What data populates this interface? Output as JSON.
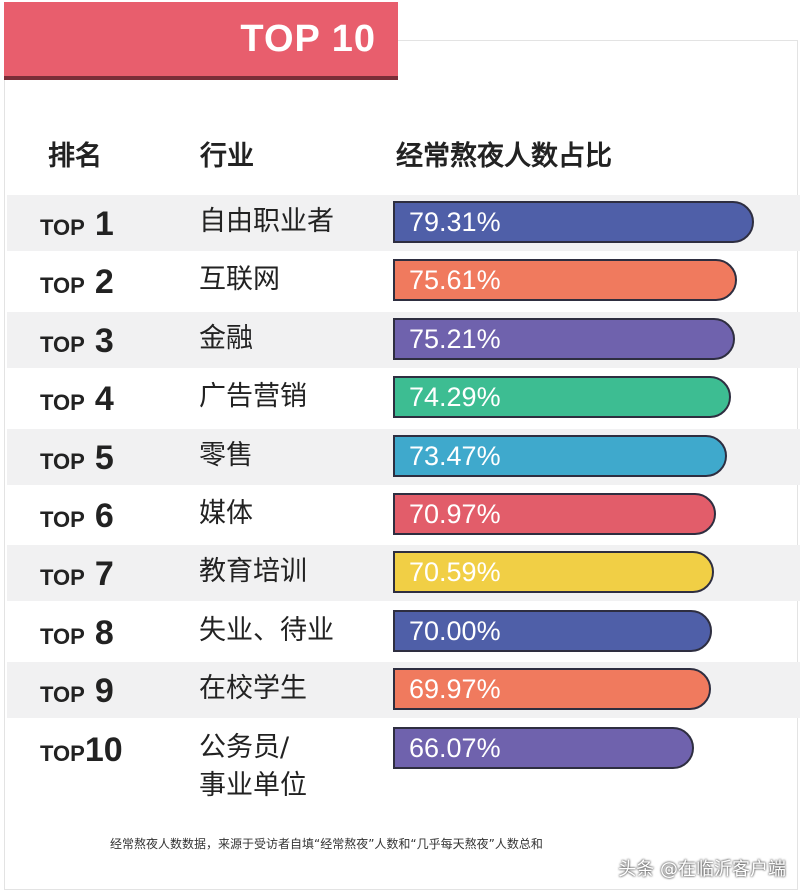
{
  "title": "TOP 10",
  "headers": {
    "rank": "排名",
    "industry": "行业",
    "share": "经常熬夜人数占比"
  },
  "chart_data": {
    "type": "bar",
    "title": "TOP 10",
    "categories": [
      "自由职业者",
      "互联网",
      "金融",
      "广告营销",
      "零售",
      "媒体",
      "教育培训",
      "失业、待业",
      "在校学生",
      "公务员/事业单位"
    ],
    "ranks": [
      {
        "prefix": "TOP",
        "number": "1"
      },
      {
        "prefix": "TOP",
        "number": "2"
      },
      {
        "prefix": "TOP",
        "number": "3"
      },
      {
        "prefix": "TOP",
        "number": "4"
      },
      {
        "prefix": "TOP",
        "number": "5"
      },
      {
        "prefix": "TOP",
        "number": "6"
      },
      {
        "prefix": "TOP",
        "number": "7"
      },
      {
        "prefix": "TOP",
        "number": "8"
      },
      {
        "prefix": "TOP",
        "number": "9"
      },
      {
        "prefix": "TOP",
        "number": "10"
      }
    ],
    "industry_lines": [
      [
        "自由职业者"
      ],
      [
        "互联网"
      ],
      [
        "金融"
      ],
      [
        "广告营销"
      ],
      [
        "零售"
      ],
      [
        "媒体"
      ],
      [
        "教育培训"
      ],
      [
        "失业、待业"
      ],
      [
        "在校学生"
      ],
      [
        "公务员/",
        "事业单位"
      ]
    ],
    "values": [
      79.31,
      75.61,
      75.21,
      74.29,
      73.47,
      70.97,
      70.59,
      70.0,
      69.97,
      66.07
    ],
    "value_labels": [
      "79.31%",
      "75.61%",
      "75.21%",
      "74.29%",
      "73.47%",
      "70.97%",
      "70.59%",
      "70.00%",
      "69.97%",
      "66.07%"
    ],
    "colors": [
      "#4f5fa8",
      "#f07a5e",
      "#6f62ad",
      "#3dbd92",
      "#3fa9cc",
      "#e25d6a",
      "#f1cf45",
      "#4f5fa8",
      "#f07a5e",
      "#6f62ad"
    ],
    "xlim": [
      0,
      80
    ]
  },
  "footnote": "经常熬夜人数数据，来源于受访者自填“经常熬夜”人数和“几乎每天熬夜”人数总和",
  "watermark": "头条 @在临沂客户端"
}
